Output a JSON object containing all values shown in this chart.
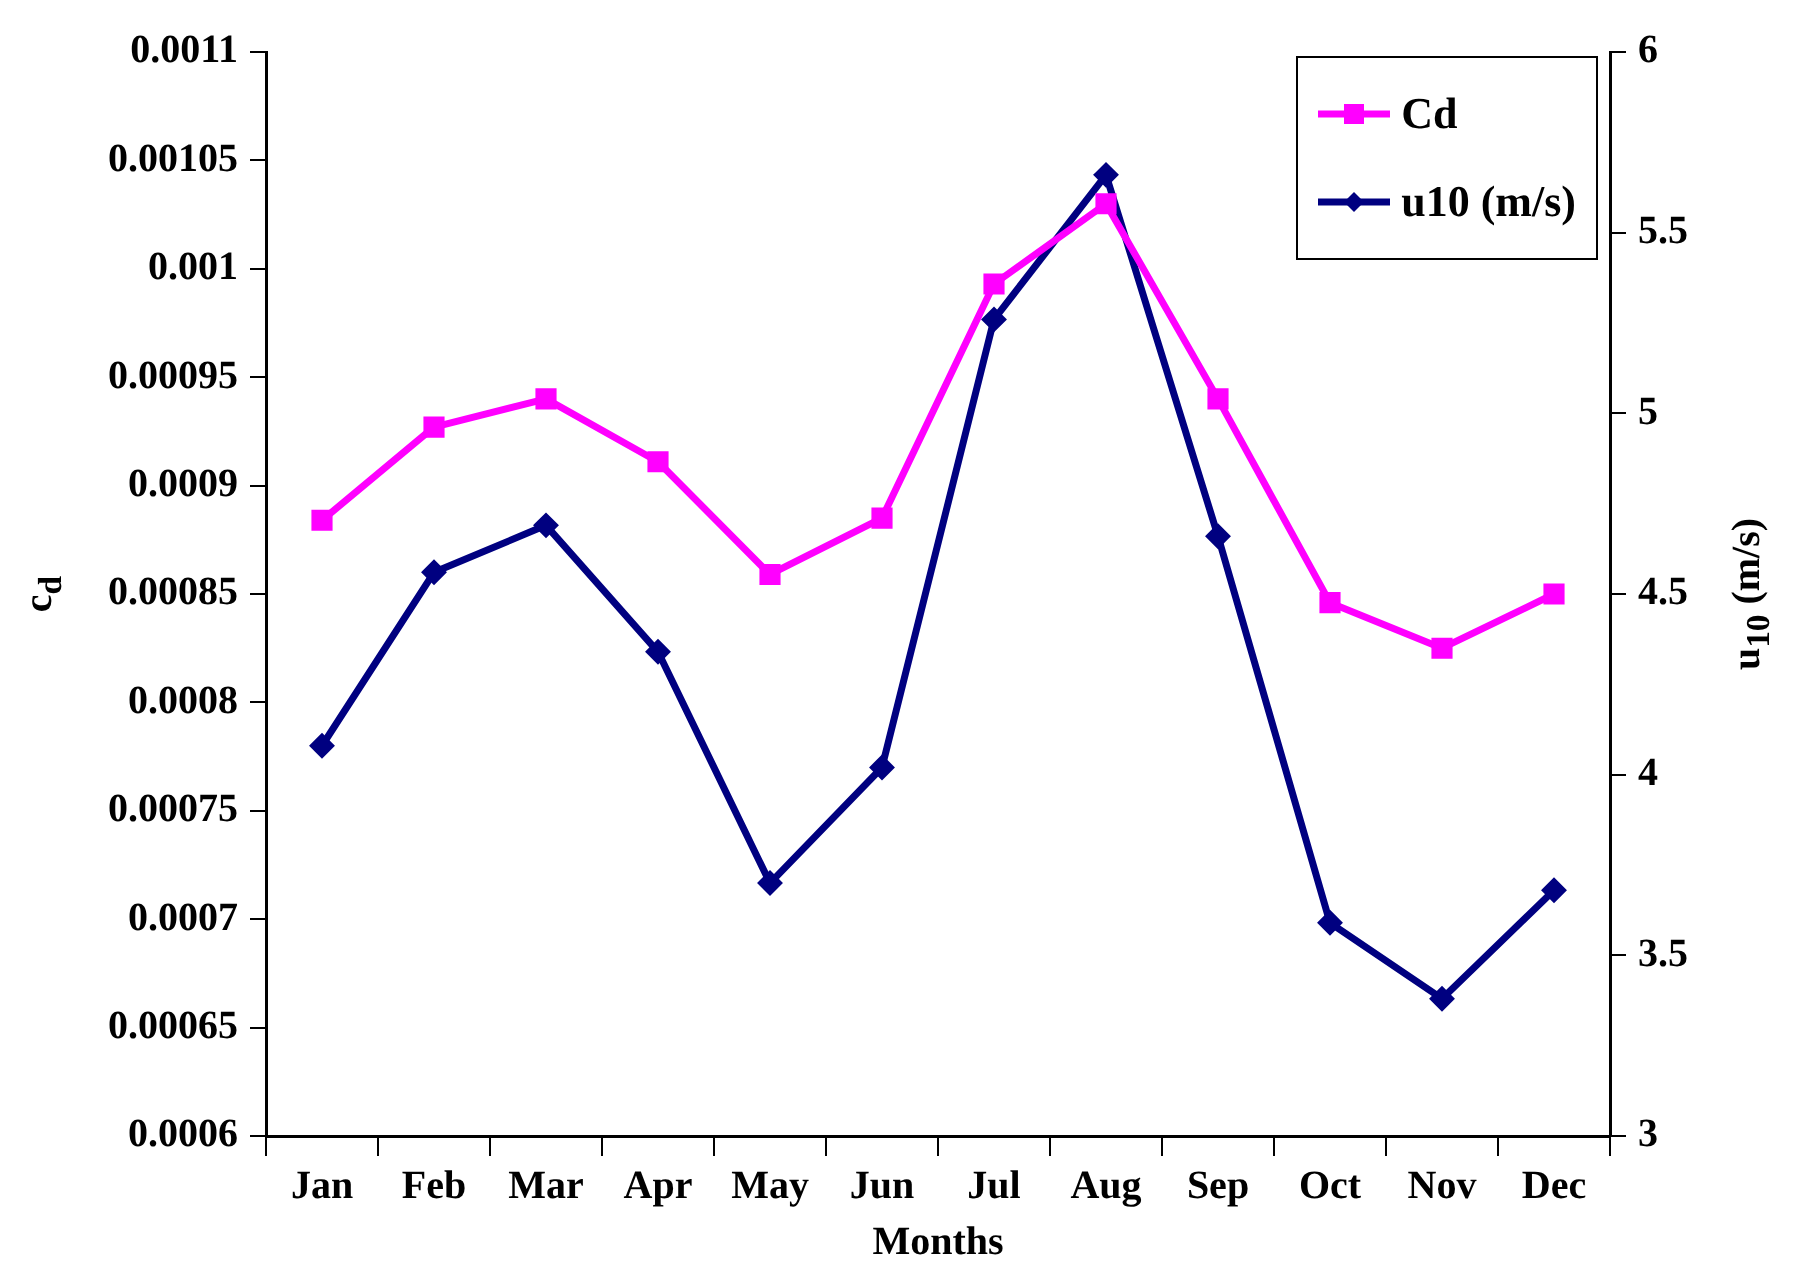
{
  "chart_data": {
    "type": "line",
    "xlabel": "Months",
    "ylabel": "c$_{d}$",
    "y2label": "u$_{10}$ (m/s)",
    "categories": [
      "Jan",
      "Feb",
      "Mar",
      "Apr",
      "May",
      "Jun",
      "Jul",
      "Aug",
      "Sep",
      "Oct",
      "Nov",
      "Dec"
    ],
    "series": [
      {
        "name": "Cd",
        "color": "#ff00ff",
        "marker": "square",
        "values": [
          0.000884,
          0.000927,
          0.00094,
          0.000911,
          0.000859,
          0.000885,
          0.000993,
          0.00103,
          0.00094,
          0.000846,
          0.000825,
          0.00085
        ]
      },
      {
        "name": "u10 (m/s)",
        "color": "#000080",
        "marker": "diamond",
        "axis": "y2",
        "values": [
          4.08,
          4.56,
          4.69,
          4.34,
          3.7,
          4.02,
          5.26,
          5.66,
          4.66,
          3.59,
          3.38,
          3.68
        ]
      }
    ],
    "ylim": [
      0.0006,
      0.0011
    ],
    "yticks": [
      0.0006,
      0.00065,
      0.0007,
      0.00075,
      0.0008,
      0.00085,
      0.0009,
      0.00095,
      0.001,
      0.00105,
      0.0011
    ],
    "y2lim": [
      3,
      6
    ],
    "y2ticks": [
      3,
      3.5,
      4,
      4.5,
      5,
      5.5,
      6
    ],
    "grid": false,
    "legend": "top right",
    "line_style": "solid"
  }
}
